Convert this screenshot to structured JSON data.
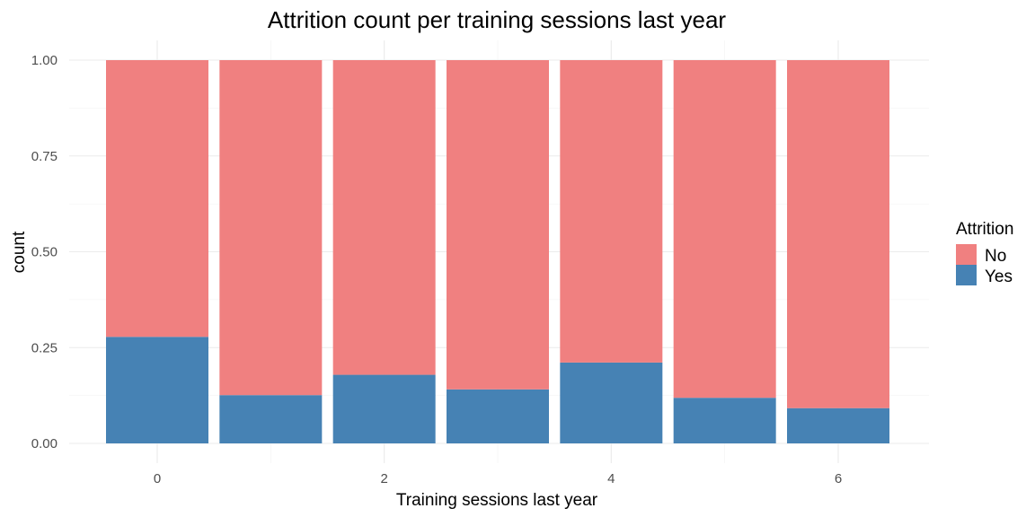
{
  "chart_data": {
    "type": "bar",
    "stacked": true,
    "position": "fill",
    "title": "Attrition count per training sessions last year",
    "xlabel": "Training sessions last year",
    "ylabel": "count",
    "categories": [
      0,
      1,
      2,
      3,
      4,
      5,
      6
    ],
    "x_ticks": [
      0,
      2,
      4,
      6
    ],
    "xlim": [
      -0.5,
      6.5
    ],
    "ylim": [
      0,
      1
    ],
    "y_ticks": [
      "0.00",
      "0.25",
      "0.50",
      "0.75",
      "1.00"
    ],
    "series": [
      {
        "name": "No",
        "color": "#f08080",
        "values": [
          0.722,
          0.874,
          0.821,
          0.859,
          0.789,
          0.881,
          0.908
        ]
      },
      {
        "name": "Yes",
        "color": "#4682b4",
        "values": [
          0.278,
          0.126,
          0.179,
          0.141,
          0.211,
          0.119,
          0.092
        ]
      }
    ],
    "legend": {
      "title": "Attrition",
      "position": "right"
    },
    "grid": true
  }
}
